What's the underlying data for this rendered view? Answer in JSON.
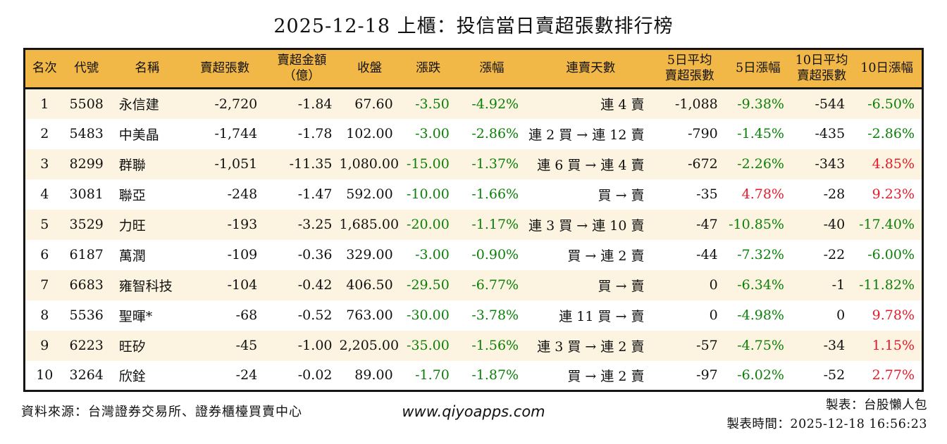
{
  "title": "2025-12-18 上櫃：投信當日賣超張數排行榜",
  "chart_data": {
    "type": "table",
    "title": "2025-12-18 上櫃：投信當日賣超張數排行榜",
    "columns": [
      {
        "key": "rank",
        "label": "名次"
      },
      {
        "key": "code",
        "label": "代號"
      },
      {
        "key": "name",
        "label": "名稱"
      },
      {
        "key": "sell_volume",
        "label": "賣超張數"
      },
      {
        "key": "sell_amount",
        "label": "賣超金額\n（億）"
      },
      {
        "key": "close",
        "label": "收盤"
      },
      {
        "key": "change",
        "label": "漲跌"
      },
      {
        "key": "change_pct",
        "label": "漲幅"
      },
      {
        "key": "streak",
        "label": "連賣天數"
      },
      {
        "key": "avg5",
        "label": "5日平均\n賣超張數"
      },
      {
        "key": "pct5",
        "label": "5日漲幅"
      },
      {
        "key": "avg10",
        "label": "10日平均\n賣超張數"
      },
      {
        "key": "pct10",
        "label": "10日漲幅"
      }
    ],
    "colored_columns": [
      "change",
      "change_pct",
      "pct5",
      "pct10"
    ],
    "rows": [
      {
        "rank": "1",
        "code": "5508",
        "name": "永信建",
        "sell_volume": "-2,720",
        "sell_amount": "-1.84",
        "close": "67.60",
        "change": "-3.50",
        "change_pct": "-4.92%",
        "streak": "連 4 賣",
        "avg5": "-1,088",
        "pct5": "-9.38%",
        "avg10": "-544",
        "pct10": "-6.50%"
      },
      {
        "rank": "2",
        "code": "5483",
        "name": "中美晶",
        "sell_volume": "-1,744",
        "sell_amount": "-1.78",
        "close": "102.00",
        "change": "-3.00",
        "change_pct": "-2.86%",
        "streak": "連 2 買 → 連 12 賣",
        "avg5": "-790",
        "pct5": "-1.45%",
        "avg10": "-435",
        "pct10": "-2.86%"
      },
      {
        "rank": "3",
        "code": "8299",
        "name": "群聯",
        "sell_volume": "-1,051",
        "sell_amount": "-11.35",
        "close": "1,080.00",
        "change": "-15.00",
        "change_pct": "-1.37%",
        "streak": "連 6 買 → 連 4 賣",
        "avg5": "-672",
        "pct5": "-2.26%",
        "avg10": "-343",
        "pct10": "4.85%"
      },
      {
        "rank": "4",
        "code": "3081",
        "name": "聯亞",
        "sell_volume": "-248",
        "sell_amount": "-1.47",
        "close": "592.00",
        "change": "-10.00",
        "change_pct": "-1.66%",
        "streak": "買 → 賣",
        "avg5": "-35",
        "pct5": "4.78%",
        "avg10": "-28",
        "pct10": "9.23%"
      },
      {
        "rank": "5",
        "code": "3529",
        "name": "力旺",
        "sell_volume": "-193",
        "sell_amount": "-3.25",
        "close": "1,685.00",
        "change": "-20.00",
        "change_pct": "-1.17%",
        "streak": "連 3 買 → 連 10 賣",
        "avg5": "-47",
        "pct5": "-10.85%",
        "avg10": "-40",
        "pct10": "-17.40%"
      },
      {
        "rank": "6",
        "code": "6187",
        "name": "萬潤",
        "sell_volume": "-109",
        "sell_amount": "-0.36",
        "close": "329.00",
        "change": "-3.00",
        "change_pct": "-0.90%",
        "streak": "買 → 連 2 賣",
        "avg5": "-44",
        "pct5": "-7.32%",
        "avg10": "-22",
        "pct10": "-6.00%"
      },
      {
        "rank": "7",
        "code": "6683",
        "name": "雍智科技",
        "sell_volume": "-104",
        "sell_amount": "-0.42",
        "close": "406.50",
        "change": "-29.50",
        "change_pct": "-6.77%",
        "streak": "買 → 賣",
        "avg5": "0",
        "pct5": "-6.34%",
        "avg10": "-1",
        "pct10": "-11.82%"
      },
      {
        "rank": "8",
        "code": "5536",
        "name": "聖暉*",
        "sell_volume": "-68",
        "sell_amount": "-0.52",
        "close": "763.00",
        "change": "-30.00",
        "change_pct": "-3.78%",
        "streak": "連 11 買 → 賣",
        "avg5": "0",
        "pct5": "-4.98%",
        "avg10": "0",
        "pct10": "9.78%"
      },
      {
        "rank": "9",
        "code": "6223",
        "name": "旺矽",
        "sell_volume": "-45",
        "sell_amount": "-1.00",
        "close": "2,205.00",
        "change": "-35.00",
        "change_pct": "-1.56%",
        "streak": "連 3 買 → 連 2 賣",
        "avg5": "-57",
        "pct5": "-4.75%",
        "avg10": "-34",
        "pct10": "1.15%"
      },
      {
        "rank": "10",
        "code": "3264",
        "name": "欣銓",
        "sell_volume": "-24",
        "sell_amount": "-0.02",
        "close": "89.00",
        "change": "-1.70",
        "change_pct": "-1.87%",
        "streak": "買 → 連 2 賣",
        "avg5": "-97",
        "pct5": "-6.02%",
        "avg10": "-52",
        "pct10": "2.77%"
      }
    ]
  },
  "footer": {
    "source": "資料來源：台灣證券交易所、證券櫃檯買賣中心",
    "website": "www.qiyoapps.com",
    "maker": "製表：台股懶人包",
    "timestamp": "製表時間：2025-12-18 16:56:23"
  },
  "colors": {
    "header_bg": "#F2B847",
    "row_alt_bg": "#FCF4E0",
    "up_red": "#E41A2C",
    "down_green": "#0B8009"
  }
}
